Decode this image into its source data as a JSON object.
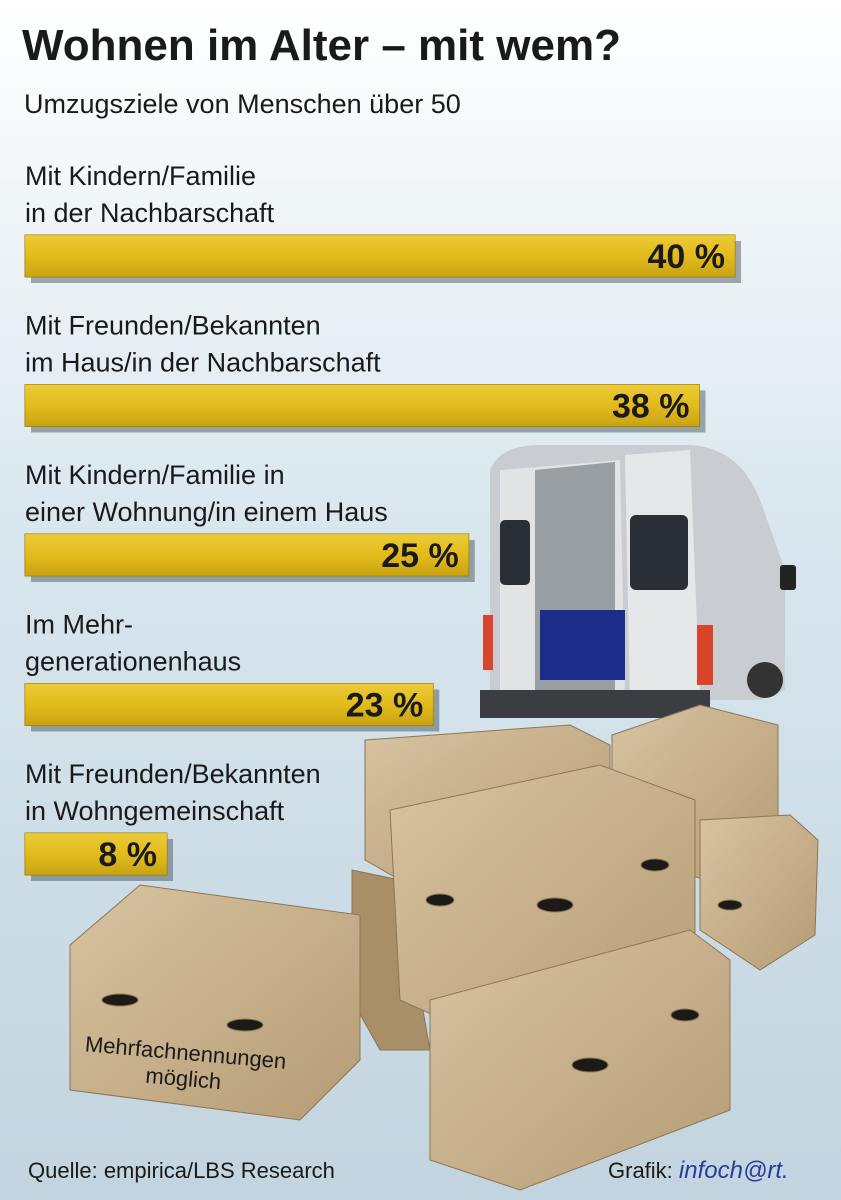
{
  "chart_data": {
    "type": "bar",
    "title": "Wohnen im Alter – mit wem?",
    "subtitle": "Umzugsziele von Menschen über 50",
    "categories": [
      [
        "Mit Kindern/Familie",
        "in der Nachbarschaft"
      ],
      [
        "Mit Freunden/Bekannten",
        "im Haus/in der Nachbarschaft"
      ],
      [
        "Mit Kindern/Familie in",
        "einer Wohnung/in einem Haus"
      ],
      [
        "Im Mehr-",
        "generationenhaus"
      ],
      [
        "Mit Freunden/Bekannten",
        "in Wohngemeinschaft"
      ]
    ],
    "values": [
      40,
      38,
      25,
      23,
      8
    ],
    "value_labels": [
      "40 %",
      "38 %",
      "25 %",
      "23 %",
      "8 %"
    ],
    "color": "#e2bb1c",
    "note": [
      "Mehrfachnennungen",
      "möglich"
    ],
    "source": "Quelle: empirica/LBS Research",
    "credit": {
      "label": "Grafik:",
      "brand": "infoch@rt."
    }
  }
}
